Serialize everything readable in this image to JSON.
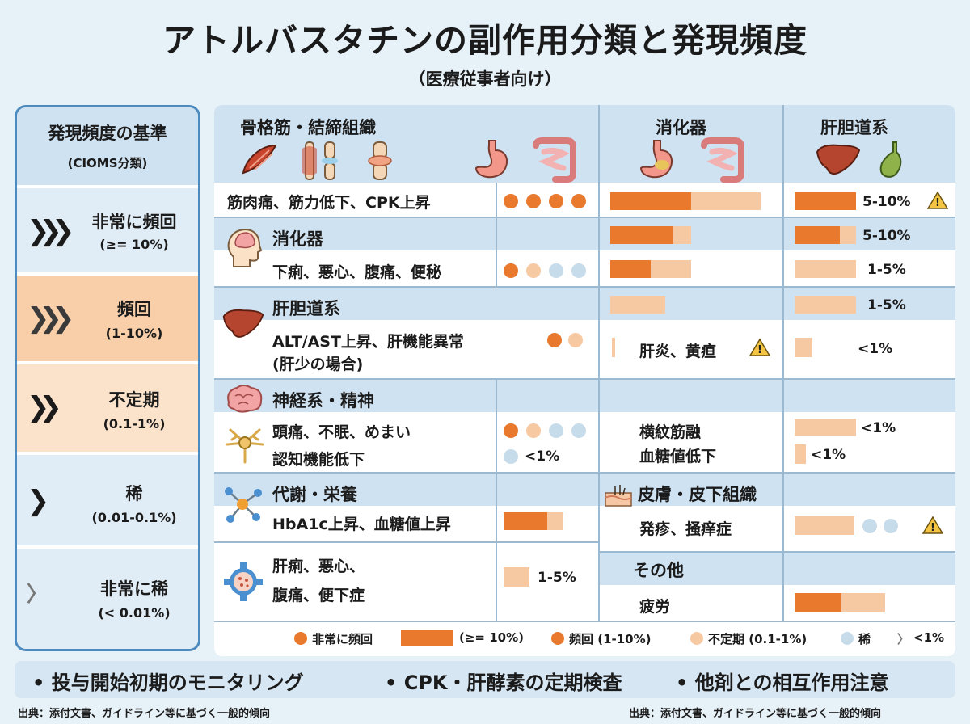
{
  "title": "アトルバスタチンの副作用分類と発現頻度",
  "subtitle": "（医療従事者向け）",
  "criteria": {
    "heading": "発現頻度の基準",
    "subheading": "(CIOMS分類)",
    "levels": [
      {
        "name": "非常に頻回",
        "range": "(≥= 10%)",
        "chevrons": "❯❯❯",
        "bg": "#e1edf6"
      },
      {
        "name": "頻回",
        "range": "(1-10%)",
        "chevrons": "❯❯❯",
        "bg": "#f8cfa8"
      },
      {
        "name": "不定期",
        "range": "(0.1-1%)",
        "chevrons": "❯❯",
        "bg": "#fbe2cb"
      },
      {
        "name": "稀",
        "range": "(0.01-0.1%)",
        "chevrons": "❯",
        "bg": "#e1edf6"
      },
      {
        "name": "非常に稀",
        "range": "(< 0.01%)",
        "chevrons": "〉",
        "bg": "#e1edf6"
      }
    ]
  },
  "columns": {
    "musculo": "骨格筋・結締組織",
    "gi": "消化器",
    "hepato": "肝胆道系"
  },
  "rows": {
    "myalgia": "筋肉痛、筋力低下、CPK上昇",
    "gi_cat": "消化器",
    "gi_items": "下痢、悪心、腹痛、便秘",
    "hep_cat": "肝胆道系",
    "hep_items_1": "ALT/AST上昇、肝機能異常",
    "hep_items_2": "(肝少の場合)",
    "hepatitis": "肝炎、黄疸",
    "neuro_cat": "神経系・精神",
    "neuro_items_1": "頭痛、不眠、めまい",
    "neuro_items_2": "認知機能低下",
    "rhabdo": "横紋筋融",
    "hypoglycemia": "血糖値低下",
    "meta_cat": "代謝・栄養",
    "meta_items": "HbA1c上昇、血糖値上昇",
    "skin_cat": "皮膚・皮下組織",
    "skin_items": "発疹、掻痒症",
    "gi2_items_1": "肝痢、悪心、",
    "gi2_items_2": "腹痛、便下症",
    "other_cat": "その他",
    "fatigue": "疲労"
  },
  "percents": {
    "p_myalgia_h": "5-10%",
    "p_gi_h": "5-10%",
    "p_gi2_h": "1-5%",
    "p_hep_h": "1-5%",
    "p_hepatitis_h": "<1%",
    "p_neuro_lt": "<1%",
    "p_rhabdo": "<1%",
    "p_hypo": "<1%",
    "p_gi2_lt": "1-5%"
  },
  "legend": {
    "very_frequent": "非常に頻回",
    "bar_range": "(≥= 10%)",
    "frequent": "頻回 (1-10%)",
    "uncommon": "不定期 (0.1-1%)",
    "rare": "稀",
    "lt1": "<1%"
  },
  "notes": [
    "• 投与開始初期のモニタリング",
    "• CPK・肝酵素の定期検査",
    "• 他剤との相互作用注意"
  ],
  "source_left": "出典：添付文書、ガイドライン等に基づく一般的傾向",
  "source_right": "出典：添付文書、ガイドライン等に基づく一般的傾向",
  "colors": {
    "accent": "#e8792d",
    "light": "#f7c9a2",
    "band": "#cfe2f1",
    "rare": "#c7dcea"
  },
  "icons": [
    "muscle-icon",
    "knee-joint-icon",
    "stomach-icon",
    "intestine-icon",
    "liver-icon",
    "gallbladder-icon",
    "brain-head-icon",
    "brain-icon",
    "neuron-icon",
    "molecule-icon",
    "gear-cell-icon",
    "skin-icon",
    "warning-icon"
  ]
}
